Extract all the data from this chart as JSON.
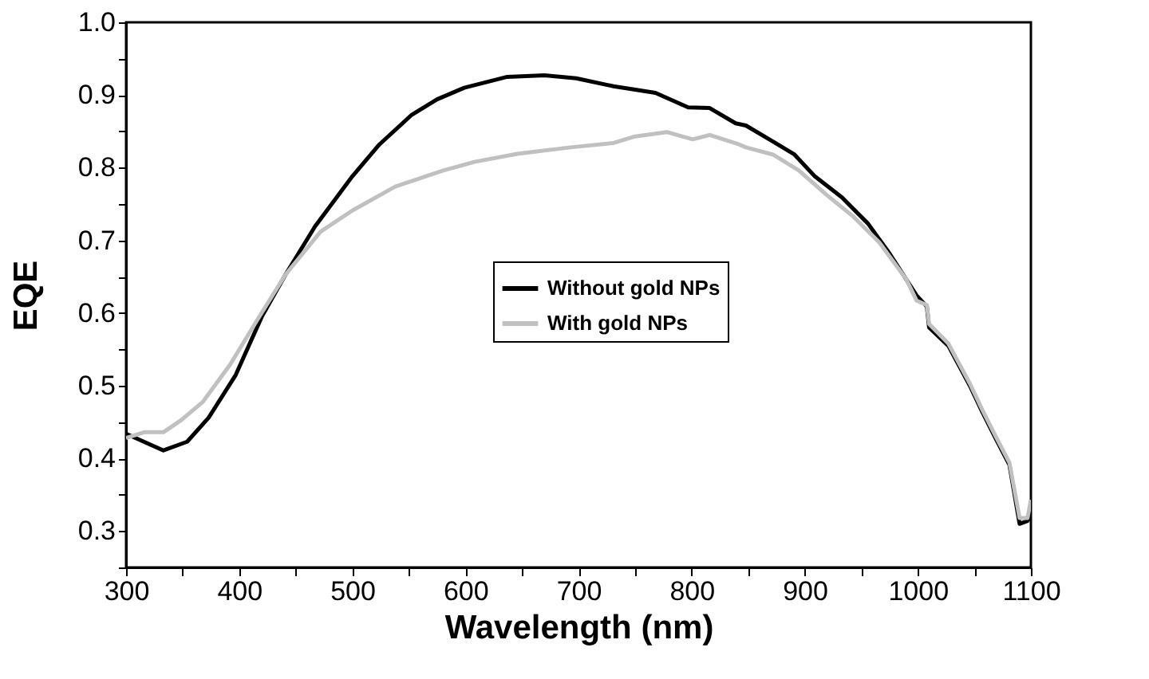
{
  "chart_data": {
    "type": "line",
    "xlabel": "Wavelength (nm)",
    "ylabel": "EQE",
    "xlim": [
      300,
      1100
    ],
    "ylim": [
      0.25,
      1.0
    ],
    "xticks": [
      300,
      {
        "value": 350,
        "label": null
      },
      400,
      {
        "value": 450,
        "label": null
      },
      500,
      {
        "value": 550,
        "label": null
      },
      600,
      {
        "value": 650,
        "label": null
      },
      700,
      {
        "value": 750,
        "label": null
      },
      800,
      {
        "value": 850,
        "label": null
      },
      900,
      {
        "value": 950,
        "label": null
      },
      1000,
      {
        "value": 1050,
        "label": null
      },
      1100
    ],
    "yticks": [
      {
        "value": 0.25,
        "label": null
      },
      {
        "value": 0.3,
        "label": "0.3"
      },
      {
        "value": 0.35,
        "label": null
      },
      {
        "value": 0.4,
        "label": "0.4"
      },
      {
        "value": 0.45,
        "label": null
      },
      {
        "value": 0.5,
        "label": "0.5"
      },
      {
        "value": 0.55,
        "label": null
      },
      {
        "value": 0.6,
        "label": "0.6"
      },
      {
        "value": 0.65,
        "label": null
      },
      {
        "value": 0.7,
        "label": "0.7"
      },
      {
        "value": 0.75,
        "label": null
      },
      {
        "value": 0.8,
        "label": "0.8"
      },
      {
        "value": 0.85,
        "label": null
      },
      {
        "value": 0.9,
        "label": "0.9"
      },
      {
        "value": 0.95,
        "label": null
      },
      {
        "value": 1.0,
        "label": "1.0"
      }
    ],
    "grid": false,
    "legend": "center",
    "marker": "none",
    "line_style": "solid",
    "series": [
      {
        "name": "Without gold NPs",
        "color": "#000000",
        "x": [
          300,
          333,
          354,
          373,
          397,
          420,
          441,
          467,
          500,
          524,
          552,
          575,
          599,
          637,
          670,
          698,
          731,
          768,
          797,
          816,
          839,
          848,
          872,
          891,
          909,
          933,
          956,
          975,
          999,
          1008,
          1010,
          1027,
          1036,
          1046,
          1057,
          1069,
          1081,
          1090,
          1097,
          1100
        ],
        "values": [
          0.434,
          0.411,
          0.423,
          0.456,
          0.515,
          0.595,
          0.653,
          0.719,
          0.788,
          0.832,
          0.872,
          0.894,
          0.91,
          0.925,
          0.927,
          0.923,
          0.912,
          0.903,
          0.883,
          0.882,
          0.861,
          0.858,
          0.836,
          0.818,
          0.788,
          0.759,
          0.723,
          0.682,
          0.624,
          0.609,
          0.58,
          0.555,
          0.529,
          0.5,
          0.464,
          0.427,
          0.391,
          0.31,
          0.314,
          0.321
        ]
      },
      {
        "name": "With gold NPs",
        "color": "#c0c0c0",
        "x": [
          300,
          316,
          333,
          349,
          368,
          392,
          415,
          441,
          472,
          500,
          538,
          580,
          608,
          646,
          693,
          731,
          750,
          778,
          801,
          816,
          842,
          848,
          872,
          895,
          919,
          942,
          966,
          990,
          999,
          1008,
          1010,
          1027,
          1036,
          1046,
          1057,
          1069,
          1081,
          1090,
          1097,
          1100
        ],
        "values": [
          0.428,
          0.436,
          0.436,
          0.453,
          0.478,
          0.529,
          0.588,
          0.653,
          0.712,
          0.741,
          0.774,
          0.796,
          0.808,
          0.819,
          0.828,
          0.834,
          0.843,
          0.849,
          0.839,
          0.845,
          0.832,
          0.828,
          0.818,
          0.796,
          0.763,
          0.734,
          0.697,
          0.646,
          0.617,
          0.611,
          0.585,
          0.558,
          0.532,
          0.503,
          0.467,
          0.43,
          0.394,
          0.318,
          0.318,
          0.343
        ]
      }
    ]
  }
}
